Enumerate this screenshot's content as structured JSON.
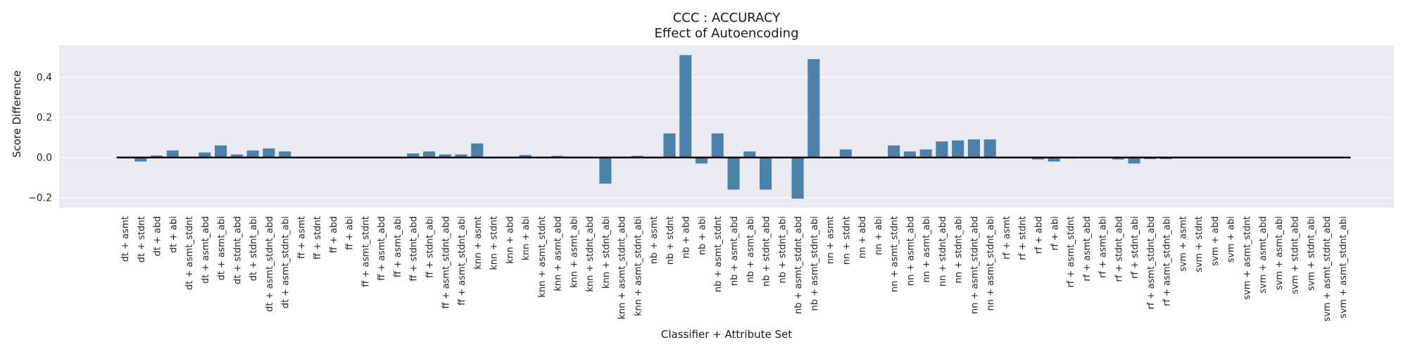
{
  "chart_data": {
    "type": "bar",
    "title": "CCC : ACCURACY",
    "subtitle": "Effect of Autoencoding",
    "xlabel": "Classifier + Attribute Set",
    "ylabel": "Score Difference",
    "ylim": [
      -0.25,
      0.56
    ],
    "yticks": [
      -0.2,
      0.0,
      0.2,
      0.4
    ],
    "ytick_labels": [
      "−0.2",
      "0.0",
      "0.2",
      "0.4"
    ],
    "grid": true,
    "bar_color": "#4c81ac",
    "zero_line_color": "#000000",
    "background": "#eaeaf2",
    "categories": [
      "dt + asmt",
      "dt + stdnt",
      "dt + abd",
      "dt + abi",
      "dt + asmt_stdnt",
      "dt + asmt_abd",
      "dt + asmt_abi",
      "dt + stdnt_abd",
      "dt + stdnt_abi",
      "dt + asmt_stdnt_abd",
      "dt + asmt_stdnt_abi",
      "ff + asmt",
      "ff + stdnt",
      "ff + abd",
      "ff + abi",
      "ff + asmt_stdnt",
      "ff + asmt_abd",
      "ff + asmt_abi",
      "ff + stdnt_abd",
      "ff + stdnt_abi",
      "ff + asmt_stdnt_abd",
      "ff + asmt_stdnt_abi",
      "knn + asmt",
      "knn + stdnt",
      "knn + abd",
      "knn + abi",
      "knn + asmt_stdnt",
      "knn + asmt_abd",
      "knn + asmt_abi",
      "knn + stdnt_abd",
      "knn + stdnt_abi",
      "knn + asmt_stdnt_abd",
      "knn + asmt_stdnt_abi",
      "nb + asmt",
      "nb + stdnt",
      "nb + abd",
      "nb + abi",
      "nb + asmt_stdnt",
      "nb + asmt_abd",
      "nb + asmt_abi",
      "nb + stdnt_abd",
      "nb + stdnt_abi",
      "nb + asmt_stdnt_abd",
      "nb + asmt_stdnt_abi",
      "nn + asmt",
      "nn + stdnt",
      "nn + abd",
      "nn + abi",
      "nn + asmt_stdnt",
      "nn + asmt_abd",
      "nn + asmt_abi",
      "nn + stdnt_abd",
      "nn + stdnt_abi",
      "nn + asmt_stdnt_abd",
      "nn + asmt_stdnt_abi",
      "rf + asmt",
      "rf + stdnt",
      "rf + abd",
      "rf + abi",
      "rf + asmt_stdnt",
      "rf + asmt_abd",
      "rf + asmt_abi",
      "rf + stdnt_abd",
      "rf + stdnt_abi",
      "rf + asmt_stdnt_abd",
      "rf + asmt_stdnt_abi",
      "svm + asmt",
      "svm + stdnt",
      "svm + abd",
      "svm + abi",
      "svm + asmt_stdnt",
      "svm + asmt_abd",
      "svm + asmt_abi",
      "svm + stdnt_abd",
      "svm + stdnt_abi",
      "svm + asmt_stdnt_abd",
      "svm + asmt_stdnt_abi"
    ],
    "values": [
      0.0,
      -0.02,
      0.01,
      0.035,
      0.0,
      0.025,
      0.06,
      0.015,
      0.035,
      0.045,
      0.03,
      0.0,
      0.0,
      0.0,
      0.0,
      0.0,
      0.0,
      0.0,
      0.02,
      0.03,
      0.015,
      0.015,
      0.07,
      -0.005,
      0.0,
      0.012,
      0.0,
      0.008,
      0.0,
      0.0,
      -0.13,
      0.0,
      0.008,
      0.0,
      0.12,
      0.51,
      -0.03,
      0.12,
      -0.16,
      0.03,
      -0.16,
      -0.005,
      -0.205,
      0.49,
      0.0,
      0.04,
      0.0,
      0.0,
      0.06,
      0.03,
      0.04,
      0.08,
      0.085,
      0.09,
      0.09,
      0.0,
      0.0,
      -0.01,
      -0.02,
      -0.005,
      0.0,
      0.0,
      -0.01,
      -0.03,
      -0.008,
      -0.008,
      0.0,
      0.0,
      0.0,
      0.0,
      0.0,
      0.0,
      0.0,
      0.0,
      0.0,
      0.0,
      0.0
    ]
  }
}
